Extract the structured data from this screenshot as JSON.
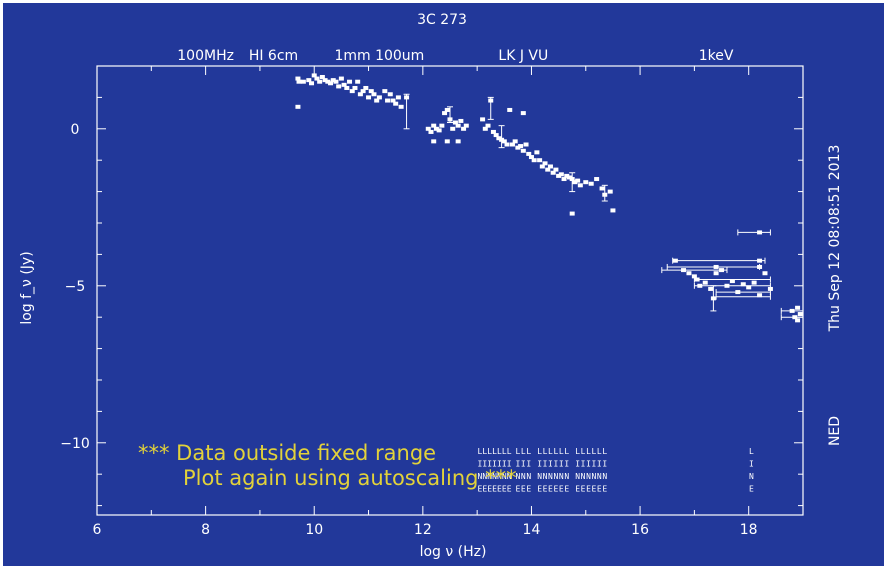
{
  "chart_data": {
    "type": "scatter",
    "title": "3C 273",
    "xlabel": "log ν (Hz)",
    "ylabel": "log f_ν (Jy)",
    "xlim": [
      6,
      19
    ],
    "ylim": [
      -12.3,
      2.0
    ],
    "x_ticks": [
      "6",
      "8",
      "10",
      "12",
      "14",
      "16",
      "18"
    ],
    "y_ticks": [
      "0",
      "−5",
      "−10"
    ],
    "top_axis_labels": [
      {
        "text": "100MHz",
        "x": 8.0
      },
      {
        "text": "HI 6cm",
        "x": 9.25
      },
      {
        "text": "1mm 100um",
        "x": 11.2
      },
      {
        "text": "LK J VU",
        "x": 13.85
      },
      {
        "text": "1keV",
        "x": 17.4
      }
    ],
    "right_labels": {
      "date": "Thu Sep 12 08:08:51 2013",
      "source": "NED"
    },
    "warning_lines": [
      "*** Data outside fixed range",
      "Plot again using autoscaling ***"
    ],
    "limit_labels": {
      "row1": "L",
      "row2": "I",
      "row3": "N",
      "row4": "E"
    },
    "series": [
      {
        "points": [
          [
            9.7,
            1.6
          ],
          [
            9.72,
            1.5
          ],
          [
            9.7,
            0.7
          ],
          [
            9.8,
            1.5
          ],
          [
            9.9,
            1.55
          ],
          [
            9.95,
            1.45
          ],
          [
            10.0,
            1.7
          ],
          [
            10.05,
            1.6
          ],
          [
            10.1,
            1.5
          ],
          [
            10.15,
            1.65
          ],
          [
            10.2,
            1.55
          ],
          [
            10.25,
            1.5
          ],
          [
            10.3,
            1.45
          ],
          [
            10.35,
            1.55
          ],
          [
            10.4,
            1.5
          ],
          [
            10.45,
            1.35
          ],
          [
            10.5,
            1.6
          ],
          [
            10.55,
            1.4
          ],
          [
            10.6,
            1.3
          ],
          [
            10.65,
            1.5
          ],
          [
            10.7,
            1.2
          ],
          [
            10.75,
            1.3
          ],
          [
            10.8,
            1.5
          ],
          [
            10.85,
            1.1
          ],
          [
            10.9,
            1.2
          ],
          [
            10.95,
            1.3
          ],
          [
            11.0,
            1.0
          ],
          [
            11.05,
            1.2
          ],
          [
            11.1,
            1.1
          ],
          [
            11.15,
            0.9
          ],
          [
            11.2,
            1.0
          ],
          [
            11.3,
            1.2
          ],
          [
            11.35,
            0.9
          ],
          [
            11.4,
            1.1
          ],
          [
            11.45,
            0.9
          ],
          [
            11.5,
            0.8
          ],
          [
            11.55,
            1.0
          ],
          [
            11.6,
            0.7
          ],
          [
            11.7,
            1.0
          ],
          [
            12.1,
            0.0
          ],
          [
            12.15,
            -0.1
          ],
          [
            12.2,
            0.1
          ],
          [
            12.25,
            0.0
          ],
          [
            12.3,
            -0.05
          ],
          [
            12.35,
            0.1
          ],
          [
            12.4,
            0.5
          ],
          [
            12.45,
            0.6
          ],
          [
            12.5,
            0.3
          ],
          [
            12.55,
            0.0
          ],
          [
            12.6,
            0.2
          ],
          [
            12.65,
            0.1
          ],
          [
            12.7,
            0.25
          ],
          [
            12.75,
            0.0
          ],
          [
            12.8,
            0.1
          ],
          [
            12.2,
            -0.4
          ],
          [
            12.45,
            -0.4
          ],
          [
            12.65,
            -0.4
          ],
          [
            13.1,
            0.3
          ],
          [
            13.15,
            0.0
          ],
          [
            13.2,
            0.1
          ],
          [
            13.25,
            0.9
          ],
          [
            13.3,
            -0.1
          ],
          [
            13.35,
            -0.2
          ],
          [
            13.4,
            -0.3
          ],
          [
            13.45,
            -0.35
          ],
          [
            13.5,
            -0.4
          ],
          [
            13.55,
            -0.5
          ],
          [
            13.6,
            0.6
          ],
          [
            13.65,
            -0.5
          ],
          [
            13.7,
            -0.4
          ],
          [
            13.75,
            -0.6
          ],
          [
            13.8,
            -0.55
          ],
          [
            13.85,
            -0.7
          ],
          [
            13.9,
            -0.5
          ],
          [
            13.95,
            -0.8
          ],
          [
            13.85,
            0.5
          ],
          [
            14.0,
            -0.9
          ],
          [
            14.05,
            -1.0
          ],
          [
            14.1,
            -0.75
          ],
          [
            14.15,
            -1.0
          ],
          [
            14.2,
            -1.2
          ],
          [
            14.25,
            -1.1
          ],
          [
            14.3,
            -1.3
          ],
          [
            14.35,
            -1.2
          ],
          [
            14.4,
            -1.4
          ],
          [
            14.45,
            -1.3
          ],
          [
            14.5,
            -1.5
          ],
          [
            14.55,
            -1.45
          ],
          [
            14.6,
            -1.6
          ],
          [
            14.65,
            -1.5
          ],
          [
            14.7,
            -1.55
          ],
          [
            14.75,
            -1.6
          ],
          [
            14.8,
            -1.7
          ],
          [
            14.85,
            -1.65
          ],
          [
            14.9,
            -1.8
          ],
          [
            15.0,
            -1.7
          ],
          [
            15.1,
            -1.75
          ],
          [
            15.2,
            -1.6
          ],
          [
            15.3,
            -1.9
          ],
          [
            15.35,
            -2.1
          ],
          [
            15.45,
            -2.0
          ],
          [
            15.5,
            -2.6
          ],
          [
            14.75,
            -2.7
          ]
        ]
      },
      {
        "points": [
          [
            16.65,
            -4.2
          ],
          [
            16.8,
            -4.5
          ],
          [
            16.9,
            -4.6
          ],
          [
            17.0,
            -4.7
          ],
          [
            17.05,
            -4.8
          ],
          [
            17.1,
            -5.0
          ],
          [
            17.2,
            -4.9
          ],
          [
            17.3,
            -5.1
          ],
          [
            17.4,
            -4.6
          ],
          [
            17.5,
            -4.5
          ],
          [
            17.6,
            -5.0
          ],
          [
            17.7,
            -4.85
          ],
          [
            17.8,
            -5.2
          ],
          [
            17.9,
            -4.95
          ],
          [
            18.0,
            -5.05
          ],
          [
            18.1,
            -4.9
          ],
          [
            18.2,
            -5.3
          ],
          [
            18.3,
            -4.6
          ],
          [
            18.4,
            -5.1
          ],
          [
            18.2,
            -3.3
          ],
          [
            18.2,
            -4.2
          ],
          [
            18.2,
            -4.4
          ],
          [
            17.4,
            -4.4
          ],
          [
            17.35,
            -5.4
          ],
          [
            18.8,
            -5.8
          ],
          [
            18.85,
            -6.0
          ],
          [
            18.9,
            -6.1
          ],
          [
            18.95,
            -5.9
          ],
          [
            18.9,
            -5.7
          ]
        ]
      }
    ],
    "error_bars": [
      {
        "x": 11.7,
        "ylo": 0.0,
        "yhi": 1.1
      },
      {
        "x": 12.5,
        "ylo": 0.2,
        "yhi": 0.7
      },
      {
        "x": 13.25,
        "ylo": 0.3,
        "yhi": 1.0
      },
      {
        "x": 13.45,
        "ylo": -0.6,
        "yhi": 0.1
      },
      {
        "x": 14.75,
        "ylo": -2.0,
        "yhi": -1.4
      },
      {
        "x": 15.35,
        "ylo": -2.3,
        "yhi": -1.8
      },
      {
        "x": 17.35,
        "ylo": -5.8,
        "yhi": -5.0
      }
    ],
    "x_error_bars": [
      {
        "y": -3.3,
        "xlo": 17.8,
        "xhi": 18.4
      },
      {
        "y": -4.2,
        "xlo": 16.6,
        "xhi": 18.3
      },
      {
        "y": -4.4,
        "xlo": 16.5,
        "xhi": 18.2
      },
      {
        "y": -4.5,
        "xlo": 16.4,
        "xhi": 17.6
      },
      {
        "y": -4.8,
        "xlo": 17.0,
        "xhi": 18.4
      },
      {
        "y": -5.0,
        "xlo": 17.0,
        "xhi": 18.4
      },
      {
        "y": -5.2,
        "xlo": 17.4,
        "xhi": 18.4
      },
      {
        "y": -5.35,
        "xlo": 17.4,
        "xhi": 18.4
      },
      {
        "y": -5.8,
        "xlo": 18.6,
        "xhi": 19.0
      },
      {
        "y": -6.0,
        "xlo": 18.6,
        "xhi": 19.0
      }
    ],
    "grid": false,
    "colors": {
      "background": "#22389a",
      "foreground": "#ffffff",
      "warning": "#e2d23a"
    }
  }
}
